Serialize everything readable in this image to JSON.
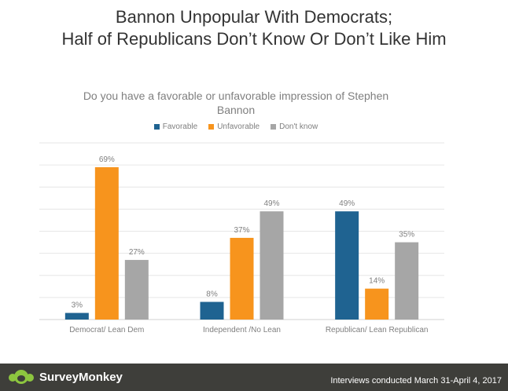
{
  "title": {
    "line1": "Bannon Unpopular With Democrats;",
    "line2": "Half of Republicans Don’t Know Or Don’t Like Him"
  },
  "chart_data": {
    "type": "bar",
    "title": "Do you have a favorable or unfavorable impression of Stephen Bannon",
    "categories": [
      "Democrat/ Lean Dem",
      "Independent /No Lean",
      "Republican/ Lean Republican"
    ],
    "series": [
      {
        "name": "Favorable",
        "values": [
          3,
          8,
          49
        ],
        "labels": [
          "3%",
          "8%",
          "49%"
        ],
        "color": "#1f6391"
      },
      {
        "name": "Unfavorable",
        "values": [
          69,
          37,
          14
        ],
        "labels": [
          "69%",
          "37%",
          "14%"
        ],
        "color": "#f7941d"
      },
      {
        "name": "Don't know",
        "values": [
          27,
          49,
          35
        ],
        "labels": [
          "27%",
          "49%",
          "35%"
        ],
        "color": "#a6a6a6"
      }
    ],
    "ylim": [
      0,
      80
    ],
    "grid": true,
    "legend": "top"
  },
  "footer": {
    "brand": "SurveyMonkey",
    "note": "Interviews conducted March 31-April 4, 2017"
  },
  "colors": {
    "footer_bg": "#3e3e3a",
    "brand_green": "#8dc63f"
  }
}
